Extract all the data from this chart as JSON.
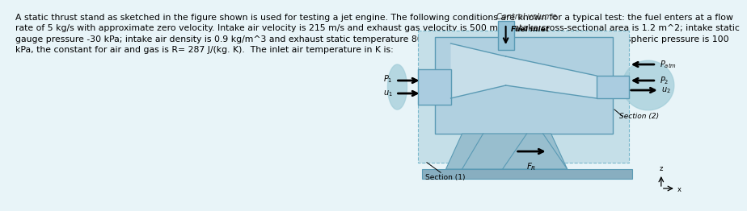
{
  "text_block": "A static thrust stand as sketched in the figure shown is used for testing a jet engine. The following conditions are known for a typical test: the fuel enters at a flow\nrate of 5 kg/s with approximate zero velocity. Intake air velocity is 215 m/s and exhaust gas velocity is 500 m/s; intake cross-sectional area is 1.2 m^2; intake static\ngauge pressure -30 kPa; intake air density is 0.9 kg/m^3 and exhaust static temperature 800 K; exhaust static pressure 0 kPa. If the atmospheric pressure is 100\nkPa, the constant for air and gas is R= 287 J/(kg. K).  The inlet air temperature in K is:",
  "bg_color": "#e8f4f8",
  "diagram_bg": "#cce4ef",
  "cv_border": "#7ab8cc",
  "engine_face": "#b8d8e8",
  "engine_edge": "#5a9ab4",
  "control_volume_label": "Control volume",
  "fuel_inlet_label": "Fuel inlet",
  "section1_label": "Section (1)",
  "section2_label": "Section (2)",
  "font_size_text": 7.8,
  "font_size_labels": 7.5
}
